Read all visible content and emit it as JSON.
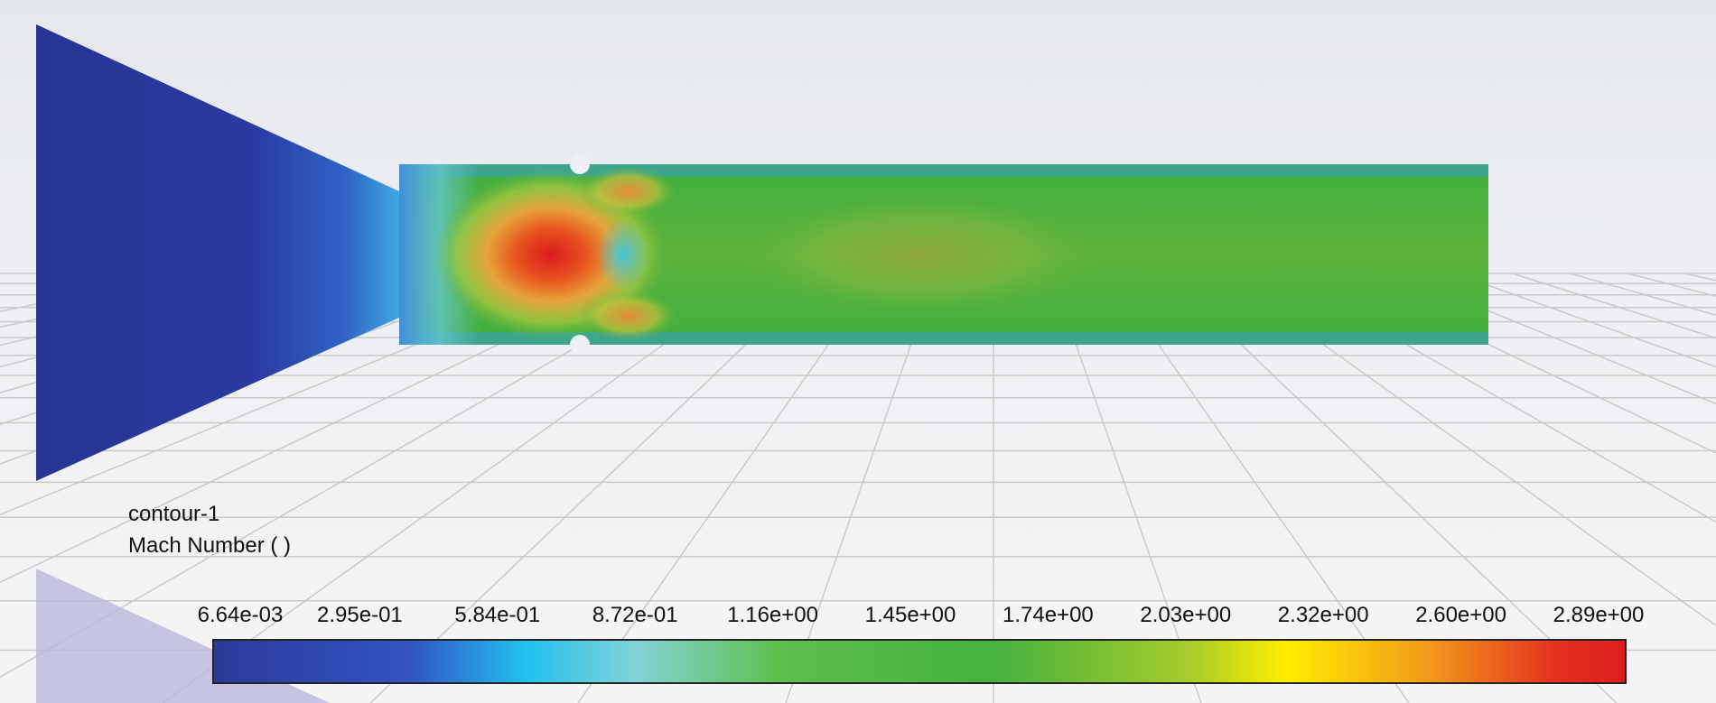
{
  "legend": {
    "title": "contour-1",
    "variable": "Mach Number ( )",
    "tick_labels": [
      "6.64e-03",
      "2.95e-01",
      "5.84e-01",
      "8.72e-01",
      "1.16e+00",
      "1.45e+00",
      "1.74e+00",
      "2.03e+00",
      "2.32e+00",
      "2.60e+00",
      "2.89e+00"
    ]
  }
}
